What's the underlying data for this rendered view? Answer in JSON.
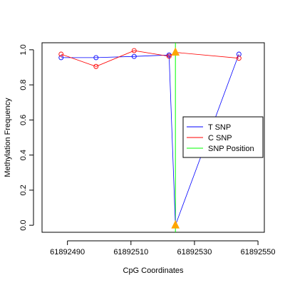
{
  "chart_data": {
    "type": "line",
    "title": "",
    "xlabel": "CpG Coordinates",
    "ylabel": "Methylation Frequency",
    "xlim": [
      61892482,
      61892552
    ],
    "ylim": [
      -0.04,
      1.04
    ],
    "x_ticks": [
      61892490,
      61892510,
      61892530,
      61892550
    ],
    "x_tick_labels": [
      "61892490",
      "61892510",
      "61892530",
      "61892550"
    ],
    "y_ticks": [
      0,
      0.2,
      0.4,
      0.6,
      0.8,
      1.0
    ],
    "y_tick_labels": [
      "0.0",
      "0.2",
      "0.4",
      "0.6",
      "0.8",
      "1.0"
    ],
    "grid": false,
    "legend_position": "right",
    "series": [
      {
        "name": "T SNP",
        "color": "#0000ff",
        "x": [
          61892488,
          61892499,
          61892511,
          61892522,
          61892524,
          61892544
        ],
        "y": [
          0.955,
          0.955,
          0.962,
          0.97,
          0.0,
          0.975
        ]
      },
      {
        "name": "C SNP",
        "color": "#ff0000",
        "x": [
          61892488,
          61892499,
          61892511,
          61892522,
          61892524,
          61892544
        ],
        "y": [
          0.975,
          0.905,
          0.995,
          0.963,
          0.985,
          0.952
        ]
      }
    ],
    "snp_position": {
      "name": "SNP Position",
      "color": "#00ff00",
      "x": 61892524,
      "marker_color": "#ffa500",
      "markers_y": [
        0.985,
        0.0
      ]
    },
    "legend": [
      {
        "label": "T SNP",
        "color": "#0000ff"
      },
      {
        "label": "C SNP",
        "color": "#ff0000"
      },
      {
        "label": "SNP Position",
        "color": "#00ff00"
      }
    ]
  }
}
